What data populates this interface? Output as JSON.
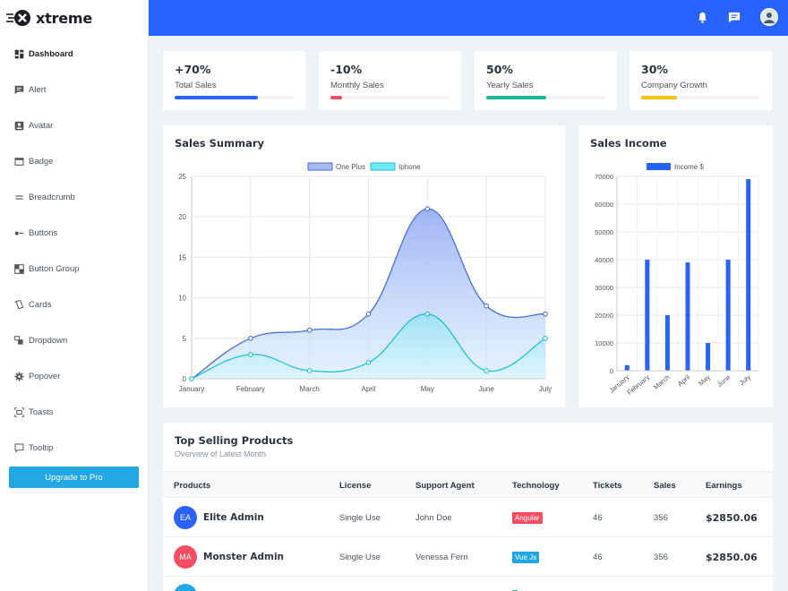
{
  "app": {
    "name": "xtreme"
  },
  "sidebar": {
    "items": [
      {
        "label": "Dashboard",
        "icon": "dashboard-icon"
      },
      {
        "label": "Alert",
        "icon": "alert-icon"
      },
      {
        "label": "Avatar",
        "icon": "avatar-icon"
      },
      {
        "label": "Badge",
        "icon": "badge-icon"
      },
      {
        "label": "Breadcrumb",
        "icon": "breadcrumb-icon"
      },
      {
        "label": "Buttons",
        "icon": "buttons-icon"
      },
      {
        "label": "Button Group",
        "icon": "button-group-icon"
      },
      {
        "label": "Cards",
        "icon": "cards-icon"
      },
      {
        "label": "Dropdown",
        "icon": "dropdown-icon"
      },
      {
        "label": "Popover",
        "icon": "gear-icon"
      },
      {
        "label": "Toasts",
        "icon": "toasts-icon"
      },
      {
        "label": "Tooltip",
        "icon": "tooltip-icon"
      }
    ],
    "upgrade_label": "Upgrade to Pro"
  },
  "topbar": {
    "icons": [
      "bell-icon",
      "message-icon",
      "user-avatar"
    ]
  },
  "stats": [
    {
      "value": "+70%",
      "label": "Total Sales",
      "progress": 0.7,
      "color": "#2962ff"
    },
    {
      "value": "-10%",
      "label": "Monthly Sales",
      "progress": 0.1,
      "color": "#f64e60"
    },
    {
      "value": "50%",
      "label": "Yearly Sales",
      "progress": 0.5,
      "color": "#1eb39b"
    },
    {
      "value": "30%",
      "label": "Company Growth",
      "progress": 0.3,
      "color": "#f7c500"
    }
  ],
  "sales_summary": {
    "title": "Sales Summary",
    "chart_data": {
      "type": "area",
      "categories": [
        "January",
        "February",
        "March",
        "April",
        "May",
        "June",
        "July"
      ],
      "series": [
        {
          "name": "One Plus",
          "values": [
            0,
            5,
            6,
            8,
            21,
            9,
            8
          ],
          "color": "#4a6fdc"
        },
        {
          "name": "Iphone",
          "values": [
            0,
            3,
            1,
            2,
            8,
            1,
            5
          ],
          "color": "#21c1d6"
        }
      ],
      "ylim": [
        0,
        25
      ],
      "yticks": [
        0,
        5,
        10,
        15,
        20,
        25
      ],
      "grid": true,
      "legend": "top-center"
    }
  },
  "sales_income": {
    "title": "Sales Income",
    "chart_data": {
      "type": "bar",
      "categories": [
        "January",
        "February",
        "March",
        "April",
        "May",
        "June",
        "July"
      ],
      "series": [
        {
          "name": "Income $",
          "values": [
            2000,
            40000,
            20000,
            39000,
            10000,
            40000,
            69000
          ],
          "color": "#2962ff"
        }
      ],
      "ylim": [
        0,
        70000
      ],
      "yticks": [
        0,
        10000,
        20000,
        30000,
        40000,
        50000,
        60000,
        70000
      ],
      "grid": true,
      "legend": "top-center"
    }
  },
  "products": {
    "title": "Top Selling Products",
    "subtitle": "Overview of Latest Month",
    "columns": [
      "Products",
      "License",
      "Support Agent",
      "Technology",
      "Tickets",
      "Sales",
      "Earnings"
    ],
    "rows": [
      {
        "initials": "EA",
        "avatar_color": "#2962ff",
        "name": "Elite Admin",
        "license": "Single Use",
        "agent": "John Doe",
        "tech": "Angular",
        "tech_color": "#f64e60",
        "tickets": "46",
        "sales": "356",
        "earnings": "$2850.06"
      },
      {
        "initials": "MA",
        "avatar_color": "#f64e60",
        "name": "Monster Admin",
        "license": "Single Use",
        "agent": "Venessa Fern",
        "tech": "Vue Js",
        "tech_color": "#21a8e4",
        "tickets": "46",
        "sales": "356",
        "earnings": "$2850.06"
      },
      {
        "initials": "",
        "avatar_color": "#21a8e4",
        "name": "",
        "license": "",
        "agent": "",
        "tech": "",
        "tech_color": "#1eb39b",
        "tickets": "",
        "sales": "",
        "earnings": ""
      }
    ]
  }
}
